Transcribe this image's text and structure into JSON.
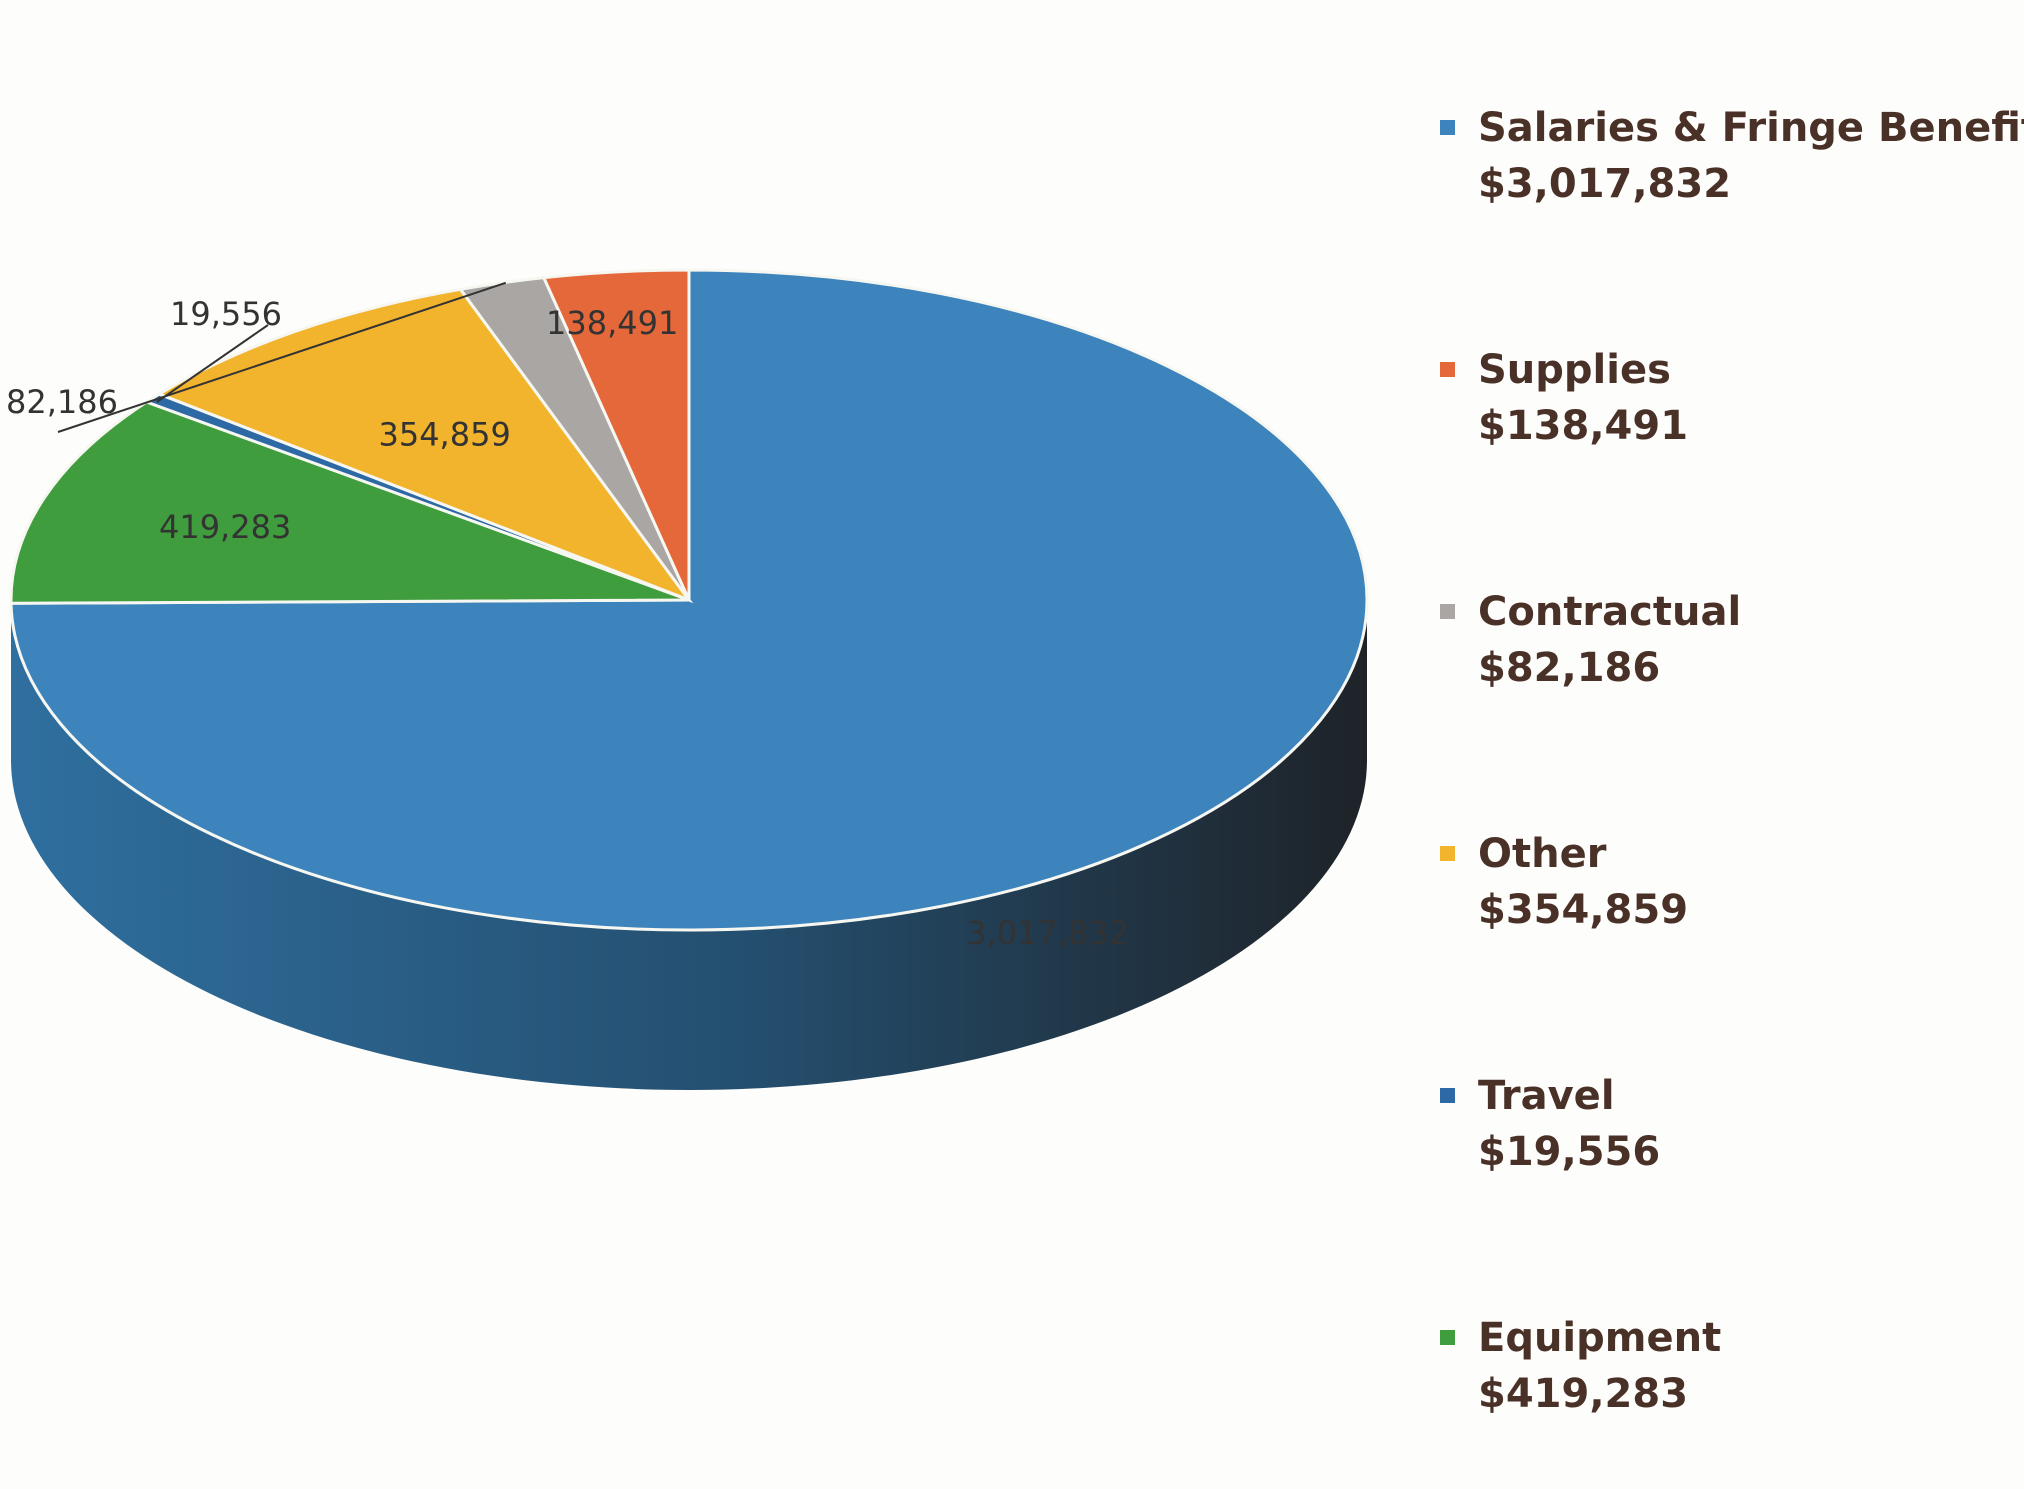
{
  "chart_data": {
    "type": "pie",
    "title": "",
    "labels": [
      "Salaries & Fringe Benefits",
      "Supplies",
      "Contractual",
      "Other",
      "Travel",
      "Equipment"
    ],
    "values": [
      3017832,
      138491,
      82186,
      354859,
      19556,
      419283
    ],
    "slice_labels": [
      "3,017,832",
      "138,491",
      "82,186",
      "354,859",
      "19,556",
      "419,283"
    ],
    "colors": [
      "#3d84bd",
      "#e4683a",
      "#a9a6a4",
      "#f2b32d",
      "#2d6aa5",
      "#3f9d3e"
    ],
    "legend": {
      "placement": "right",
      "entries": [
        {
          "name": "Salaries & Fringe Benefits",
          "amount": "$3,017,832"
        },
        {
          "name": "Supplies",
          "amount": "$138,491"
        },
        {
          "name": "Contractual",
          "amount": "$82,186"
        },
        {
          "name": "Other",
          "amount": "$354,859"
        },
        {
          "name": "Travel",
          "amount": "$19,556"
        },
        {
          "name": "Equipment",
          "amount": "$419,283"
        }
      ]
    }
  }
}
